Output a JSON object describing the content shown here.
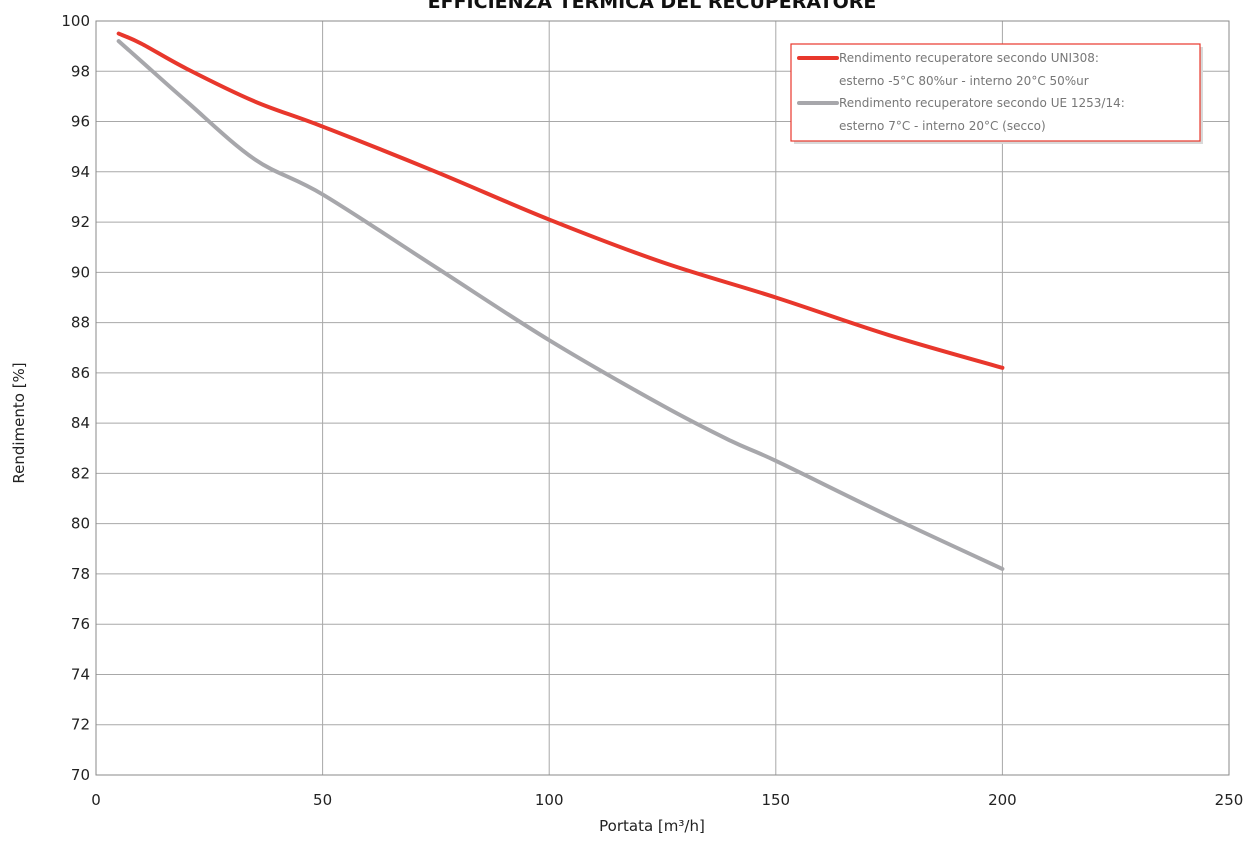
{
  "chart_data": {
    "type": "line",
    "title": "EFFICIENZA TERMICA DEL RECUPERATORE",
    "xlabel": "Portata [m³/h]",
    "ylabel": "Rendimento [%]",
    "xlim": [
      0,
      250
    ],
    "ylim": [
      70,
      100
    ],
    "x_ticks": [
      0,
      50,
      100,
      150,
      200,
      250
    ],
    "y_ticks": [
      70,
      72,
      74,
      76,
      78,
      80,
      82,
      84,
      86,
      88,
      90,
      92,
      94,
      96,
      98,
      100
    ],
    "grid": true,
    "legend_position": "top-right",
    "series": [
      {
        "name_lines": [
          "Rendimento recuperatore secondo UNI308:",
          "esterno -5°C 80%ur - interno 20°C 50%ur"
        ],
        "color": "#e8372c",
        "x": [
          5,
          10,
          20,
          35,
          50,
          75,
          100,
          125,
          150,
          175,
          200
        ],
        "y": [
          99.5,
          99.1,
          98.1,
          96.8,
          95.8,
          94.0,
          92.1,
          90.4,
          89.0,
          87.5,
          86.2
        ]
      },
      {
        "name_lines": [
          "Rendimento recuperatore secondo UE 1253/14:",
          "esterno 7°C - interno 20°C (secco)"
        ],
        "color": "#a7a7ab",
        "x": [
          5,
          10,
          20,
          35,
          50,
          75,
          100,
          125,
          140,
          150,
          175,
          200
        ],
        "y": [
          99.2,
          98.4,
          96.8,
          94.5,
          93.1,
          90.2,
          87.3,
          84.7,
          83.3,
          82.5,
          80.3,
          78.2
        ]
      }
    ]
  }
}
